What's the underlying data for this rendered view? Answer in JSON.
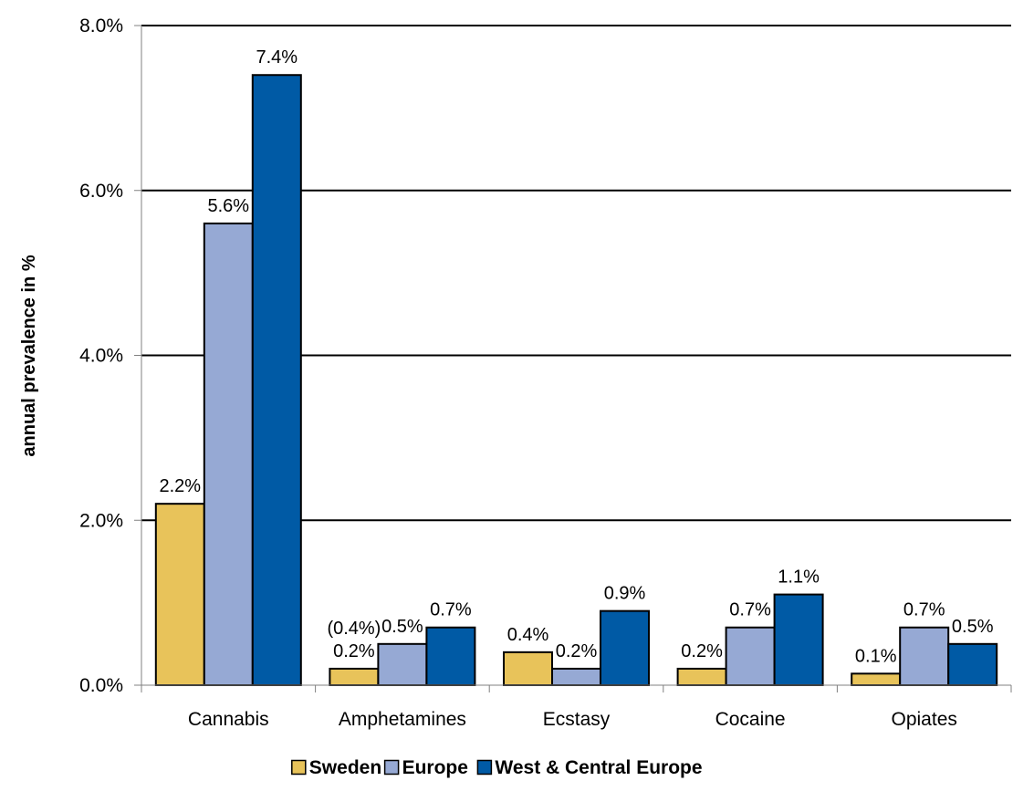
{
  "chart_data": {
    "type": "bar",
    "title": "",
    "xlabel": "",
    "ylabel": "annual prevalence in %",
    "categories": [
      "Cannabis",
      "Amphetamines",
      "Ecstasy",
      "Cocaine",
      "Opiates"
    ],
    "series": [
      {
        "name": "Sweden",
        "color": "#E8C35A",
        "values": [
          2.2,
          0.2,
          0.4,
          0.2,
          0.14
        ],
        "labels": [
          "2.2%",
          "0.2%",
          "0.4%",
          "0.2%",
          "0.1%"
        ]
      },
      {
        "name": "Europe",
        "color": "#96A9D4",
        "values": [
          5.6,
          0.5,
          0.2,
          0.7,
          0.7
        ],
        "labels": [
          "5.6%",
          "0.5%",
          "0.2%",
          "0.7%",
          "0.7%"
        ]
      },
      {
        "name": "West & Central Europe",
        "color": "#005AA5",
        "values": [
          7.4,
          0.7,
          0.9,
          1.1,
          0.5
        ],
        "labels": [
          "7.4%",
          "0.7%",
          "0.9%",
          "1.1%",
          "0.5%"
        ]
      }
    ],
    "annotations": [
      {
        "text": "(0.4%)",
        "category": "Amphetamines",
        "series": "Sweden"
      }
    ],
    "ylim": [
      0,
      8
    ],
    "yticks": [
      0,
      2,
      4,
      6,
      8
    ],
    "ytick_labels": [
      "0.0%",
      "2.0%",
      "4.0%",
      "6.0%",
      "8.0%"
    ],
    "grid": true,
    "legend_position": "bottom"
  }
}
